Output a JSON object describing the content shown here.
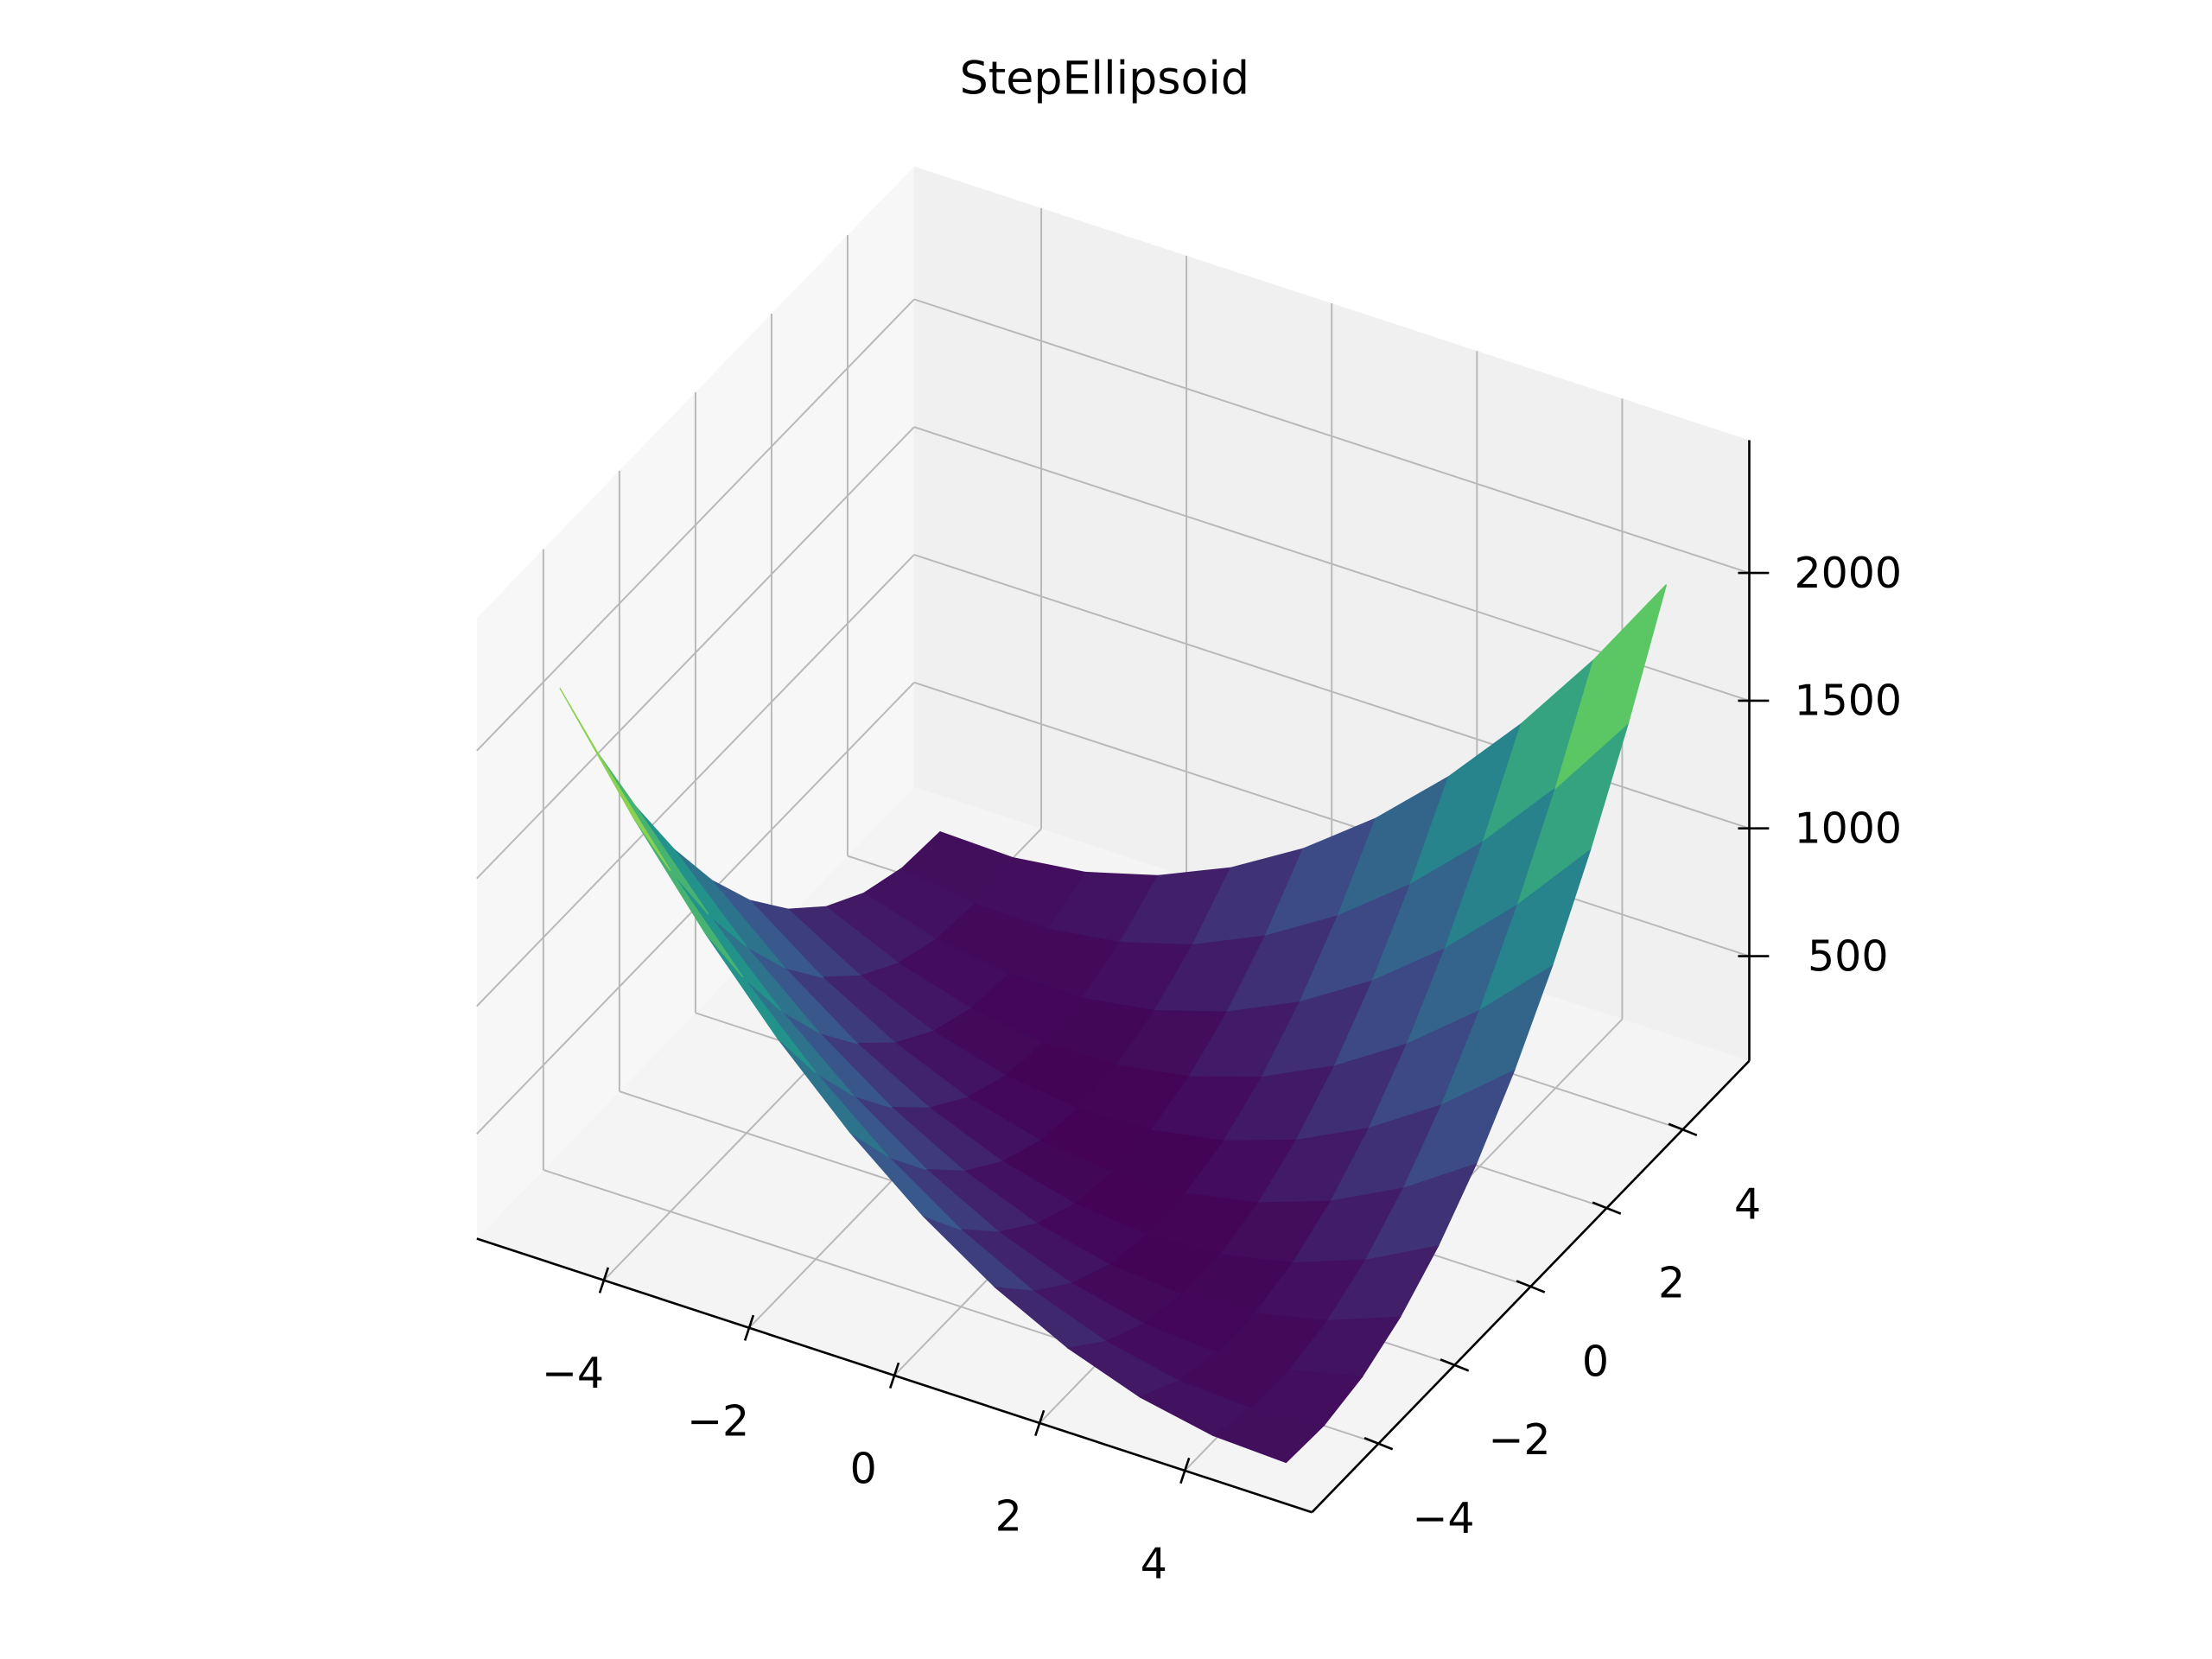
{
  "chart_data": {
    "type": "surface",
    "title": "StepEllipsoid",
    "x": [
      -5,
      -4,
      -3,
      -2,
      -1,
      0,
      1,
      2,
      3,
      4,
      5
    ],
    "y": [
      -5,
      -4,
      -3,
      -2,
      -1,
      0,
      1,
      2,
      3,
      4,
      5
    ],
    "z": [
      [
        2200,
        1792,
        1428,
        1108,
        832,
        600,
        412,
        268,
        168,
        112,
        100
      ],
      [
        1792,
        1424,
        1100,
        820,
        584,
        392,
        244,
        140,
        80,
        64,
        92
      ],
      [
        1428,
        1100,
        816,
        576,
        380,
        228,
        120,
        56,
        36,
        60,
        128
      ],
      [
        1108,
        820,
        576,
        376,
        220,
        108,
        40,
        16,
        36,
        100,
        208
      ],
      [
        832,
        584,
        380,
        220,
        104,
        32,
        4,
        20,
        80,
        184,
        332
      ],
      [
        600,
        392,
        228,
        108,
        32,
        0,
        12,
        68,
        168,
        312,
        500
      ],
      [
        412,
        244,
        120,
        40,
        4,
        12,
        64,
        160,
        300,
        484,
        712
      ],
      [
        268,
        140,
        56,
        16,
        20,
        68,
        160,
        296,
        476,
        700,
        968
      ],
      [
        168,
        80,
        36,
        36,
        80,
        168,
        300,
        476,
        696,
        960,
        1268
      ],
      [
        112,
        64,
        60,
        100,
        184,
        312,
        484,
        700,
        960,
        1264,
        1612
      ],
      [
        100,
        92,
        128,
        208,
        332,
        500,
        712,
        968,
        1268,
        1612,
        2000
      ]
    ],
    "colormap": "viridis",
    "xlim": [
      -5.75,
      5.75
    ],
    "ylim": [
      -5.75,
      5.75
    ],
    "zlim": [
      90,
      2520
    ],
    "xticks": [
      {
        "value": -4,
        "label": "−4"
      },
      {
        "value": -2,
        "label": "−2"
      },
      0,
      2,
      4
    ],
    "yticks": [
      {
        "value": -4,
        "label": "−4"
      },
      {
        "value": -2,
        "label": "−2"
      },
      0,
      2,
      4
    ],
    "zticks": [
      500,
      1000,
      1500,
      2000
    ],
    "grid": true
  }
}
